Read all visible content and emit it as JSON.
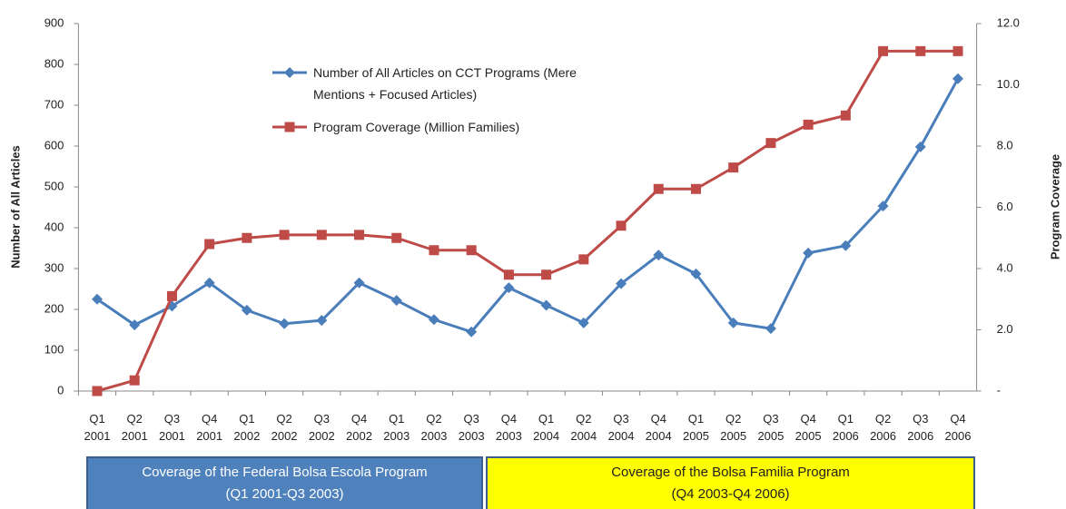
{
  "chart_data": {
    "type": "line",
    "categories": [
      "Q1 2001",
      "Q2 2001",
      "Q3 2001",
      "Q4 2001",
      "Q1 2002",
      "Q2 2002",
      "Q3 2002",
      "Q4 2002",
      "Q1 2003",
      "Q2 2003",
      "Q3 2003",
      "Q4 2003",
      "Q1 2004",
      "Q2 2004",
      "Q3 2004",
      "Q4 2004",
      "Q1 2005",
      "Q2 2005",
      "Q3 2005",
      "Q4 2005",
      "Q1 2006",
      "Q2 2006",
      "Q3 2006",
      "Q4 2006"
    ],
    "series": [
      {
        "name": "Number of All Articles on CCT Programs (Mere Mentions + Focused Articles)",
        "color": "#4a7ebb",
        "marker": "diamond",
        "values": [
          225,
          162,
          208,
          265,
          198,
          165,
          173,
          265,
          222,
          175,
          145,
          253,
          210,
          167,
          263,
          333,
          287,
          167,
          153,
          338,
          356,
          453,
          598,
          765
        ]
      },
      {
        "name": "Program Coverage (Million Families)",
        "color": "#be4b48",
        "marker": "square",
        "axis": "y2",
        "values": [
          0,
          0.35,
          3.1,
          4.8,
          5.0,
          5.1,
          5.1,
          5.1,
          5.0,
          4.6,
          4.6,
          3.8,
          3.8,
          4.3,
          5.4,
          6.6,
          6.6,
          7.3,
          8.1,
          8.7,
          9.0,
          11.1,
          11.1,
          11.1
        ]
      }
    ],
    "ylabel": "Number of All Articles",
    "y2label": "Program Coverage",
    "ylim": [
      0,
      900
    ],
    "yticks": [
      0,
      100,
      200,
      300,
      400,
      500,
      600,
      700,
      800,
      900
    ],
    "y2lim": [
      0,
      12
    ],
    "y2ticks": [
      {
        "value": 0,
        "label": "-"
      },
      {
        "value": 2,
        "label": "2.0"
      },
      {
        "value": 4,
        "label": "4.0"
      },
      {
        "value": 6,
        "label": "6.0"
      },
      {
        "value": 8,
        "label": "8.0"
      },
      {
        "value": 10,
        "label": "10.0"
      },
      {
        "value": 12,
        "label": "12.0"
      }
    ],
    "grid": false,
    "annotations": [
      {
        "text": "Coverage of the Federal Bolsa Escola Program",
        "subtext": "(Q1 2001-Q3 2003)"
      },
      {
        "text": "Coverage of the Bolsa Familia  Program",
        "subtext": "(Q4 2003-Q4 2006)"
      }
    ]
  }
}
